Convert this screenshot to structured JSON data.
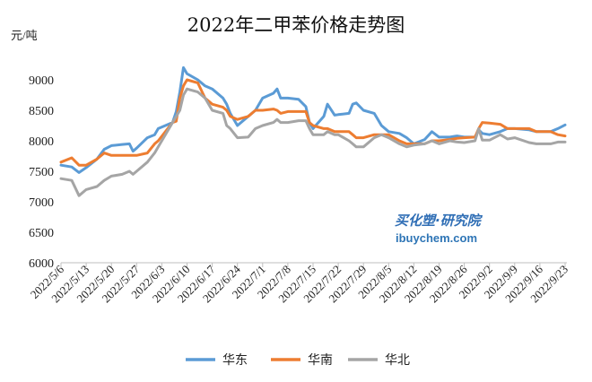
{
  "chart_data": {
    "type": "line",
    "title": "2022年二甲苯价格走势图",
    "ylabel": "元/吨",
    "xlabel": "",
    "ylim": [
      6000,
      9000
    ],
    "xlim": [
      "2022/5/6",
      "2022/9/23"
    ],
    "grid": false,
    "legend": "bottom",
    "y_ticks": [
      6000,
      6500,
      7000,
      7500,
      8000,
      8500,
      9000
    ],
    "x_ticks": [
      "2022/5/6",
      "2022/5/13",
      "2022/5/20",
      "2022/5/27",
      "2022/6/3",
      "2022/6/10",
      "2022/6/17",
      "2022/6/24",
      "2022/7/1",
      "2022/7/8",
      "2022/7/15",
      "2022/7/22",
      "2022/7/29",
      "2022/8/5",
      "2022/8/12",
      "2022/8/19",
      "2022/8/26",
      "2022/9/2",
      "2022/9/9",
      "2022/9/16",
      "2022/9/23"
    ],
    "x": [
      "2022/5/6",
      "2022/5/9",
      "2022/5/11",
      "2022/5/13",
      "2022/5/16",
      "2022/5/18",
      "2022/5/20",
      "2022/5/23",
      "2022/5/25",
      "2022/5/26",
      "2022/5/27",
      "2022/5/30",
      "2022/6/1",
      "2022/6/2",
      "2022/6/6",
      "2022/6/7",
      "2022/6/8",
      "2022/6/9",
      "2022/6/10",
      "2022/6/13",
      "2022/6/15",
      "2022/6/17",
      "2022/6/20",
      "2022/6/21",
      "2022/6/22",
      "2022/6/24",
      "2022/6/27",
      "2022/6/29",
      "2022/7/1",
      "2022/7/4",
      "2022/7/5",
      "2022/7/6",
      "2022/7/8",
      "2022/7/11",
      "2022/7/13",
      "2022/7/14",
      "2022/7/15",
      "2022/7/18",
      "2022/7/19",
      "2022/7/21",
      "2022/7/22",
      "2022/7/25",
      "2022/7/26",
      "2022/7/27",
      "2022/7/29",
      "2022/8/1",
      "2022/8/3",
      "2022/8/5",
      "2022/8/8",
      "2022/8/10",
      "2022/8/12",
      "2022/8/15",
      "2022/8/17",
      "2022/8/19",
      "2022/8/22",
      "2022/8/24",
      "2022/8/26",
      "2022/8/29",
      "2022/8/30",
      "2022/8/31",
      "2022/9/2",
      "2022/9/5",
      "2022/9/7",
      "2022/9/9",
      "2022/9/13",
      "2022/9/15",
      "2022/9/16",
      "2022/9/19",
      "2022/9/21",
      "2022/9/23"
    ],
    "series": [
      {
        "name": "华东",
        "color": "#5B9BD5",
        "values": [
          7600,
          7570,
          7480,
          7560,
          7700,
          7860,
          7920,
          7940,
          7950,
          7830,
          7880,
          8050,
          8100,
          8200,
          8300,
          8480,
          8800,
          9200,
          9100,
          9000,
          8900,
          8850,
          8700,
          8600,
          8450,
          8250,
          8400,
          8500,
          8700,
          8780,
          8850,
          8700,
          8700,
          8680,
          8560,
          8300,
          8200,
          8400,
          8600,
          8420,
          8430,
          8450,
          8600,
          8620,
          8500,
          8450,
          8250,
          8150,
          8120,
          8050,
          7950,
          8020,
          8150,
          8060,
          8060,
          8080,
          8060,
          8060,
          8180,
          8120,
          8100,
          8150,
          8200,
          8200,
          8180,
          8150,
          8150,
          8150,
          8200,
          8260
        ]
      },
      {
        "name": "华南",
        "color": "#ED7D31",
        "values": [
          7650,
          7720,
          7600,
          7600,
          7700,
          7800,
          7760,
          7760,
          7760,
          7760,
          7760,
          7800,
          7950,
          8000,
          8300,
          8320,
          8700,
          8900,
          9000,
          8950,
          8700,
          8600,
          8550,
          8500,
          8400,
          8350,
          8400,
          8500,
          8500,
          8520,
          8500,
          8450,
          8480,
          8480,
          8480,
          8300,
          8250,
          8200,
          8200,
          8150,
          8150,
          8150,
          8100,
          8050,
          8050,
          8100,
          8100,
          8100,
          8000,
          7950,
          7950,
          7950,
          8000,
          8000,
          8020,
          8040,
          8050,
          8060,
          8200,
          8300,
          8290,
          8270,
          8200,
          8200,
          8200,
          8150,
          8150,
          8150,
          8100,
          8080
        ]
      },
      {
        "name": "华北",
        "color": "#A5A5A5",
        "values": [
          7380,
          7350,
          7100,
          7200,
          7250,
          7350,
          7420,
          7450,
          7500,
          7450,
          7500,
          7650,
          7800,
          7900,
          8300,
          8400,
          8500,
          8750,
          8850,
          8800,
          8700,
          8500,
          8450,
          8250,
          8200,
          8050,
          8060,
          8200,
          8250,
          8300,
          8350,
          8300,
          8300,
          8330,
          8330,
          8200,
          8100,
          8100,
          8150,
          8100,
          8100,
          8000,
          7950,
          7900,
          7900,
          8050,
          8100,
          8050,
          7950,
          7900,
          7930,
          7950,
          8000,
          7950,
          8000,
          7980,
          7970,
          8000,
          8200,
          8010,
          8010,
          8100,
          8030,
          8050,
          7970,
          7950,
          7950,
          7950,
          7980,
          7980
        ]
      }
    ]
  },
  "watermark": {
    "brand": "买化塑·研究院",
    "site": "ibuychem.com"
  }
}
